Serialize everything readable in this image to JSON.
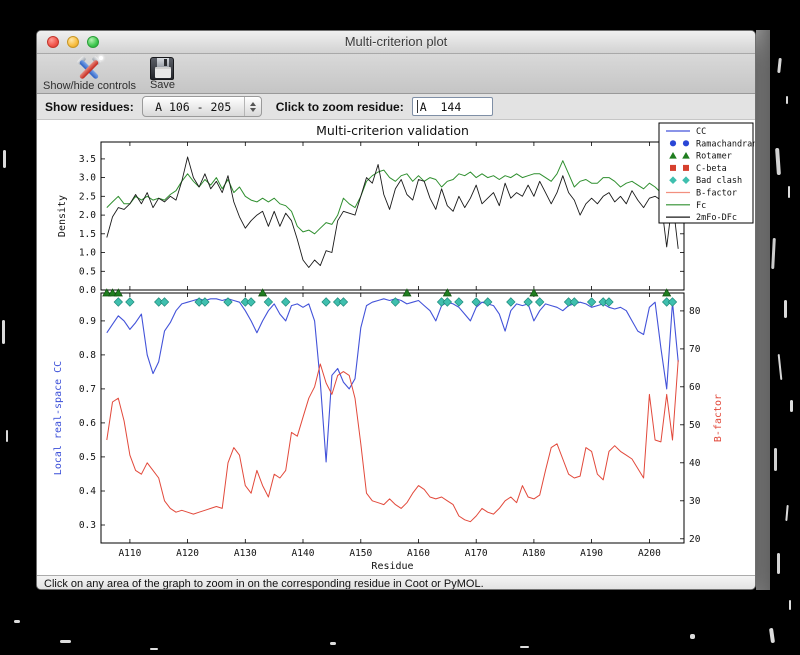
{
  "window": {
    "title": "Multi-criterion plot"
  },
  "toolbar": {
    "controls_label": "Show/hide controls",
    "save_label": "Save"
  },
  "controls": {
    "show_residues_label": "Show residues:",
    "range_value": "A 106 - 205",
    "zoom_label": "Click to zoom residue:",
    "zoom_value": "A  144"
  },
  "status": {
    "message": "Click on any area of the graph to zoom in on the corresponding residue in Coot or PyMOL."
  },
  "chart_data": {
    "type": "line",
    "title": "Multi-criterion validation",
    "xlabel": "Residue",
    "x_start": 106,
    "xlim": [
      105,
      206
    ],
    "x_ticks": [
      {
        "v": 110,
        "label": "A110"
      },
      {
        "v": 120,
        "label": "A120"
      },
      {
        "v": 130,
        "label": "A130"
      },
      {
        "v": 140,
        "label": "A140"
      },
      {
        "v": 150,
        "label": "A150"
      },
      {
        "v": 160,
        "label": "A160"
      },
      {
        "v": 170,
        "label": "A170"
      },
      {
        "v": 180,
        "label": "A180"
      },
      {
        "v": 190,
        "label": "A190"
      },
      {
        "v": 200,
        "label": "A200"
      }
    ],
    "top": {
      "ylabel": "Density",
      "ylabel_color": "#111111",
      "ylim": [
        0,
        3.95
      ],
      "yticks": [
        {
          "v": 0.0,
          "label": "0.0"
        },
        {
          "v": 0.5,
          "label": "0.5"
        },
        {
          "v": 1.0,
          "label": "1.0"
        },
        {
          "v": 1.5,
          "label": "1.5"
        },
        {
          "v": 2.0,
          "label": "2.0"
        },
        {
          "v": 2.5,
          "label": "2.5"
        },
        {
          "v": 3.0,
          "label": "3.0"
        },
        {
          "v": 3.5,
          "label": "3.5"
        }
      ],
      "series": [
        {
          "name": "Fc",
          "color": "#2f8f2f",
          "width": 1,
          "values": [
            2.2,
            2.35,
            2.5,
            2.3,
            2.3,
            2.5,
            2.4,
            2.5,
            2.4,
            2.45,
            2.4,
            2.55,
            2.65,
            2.9,
            3.1,
            2.9,
            2.75,
            2.95,
            2.8,
            3.0,
            2.7,
            2.95,
            2.6,
            2.75,
            2.5,
            2.4,
            2.35,
            2.45,
            2.35,
            2.45,
            2.3,
            2.25,
            2.1,
            1.7,
            1.55,
            1.6,
            1.5,
            1.65,
            1.8,
            1.75,
            2.0,
            2.45,
            2.3,
            2.2,
            2.5,
            2.9,
            3.05,
            3.15,
            3.2,
            3.0,
            2.9,
            3.05,
            3.1,
            2.9,
            3.05,
            2.9,
            3.0,
            2.95,
            2.75,
            2.9,
            2.95,
            3.1,
            3.05,
            3.15,
            3.0,
            3.1,
            3.0,
            3.05,
            2.95,
            3.05,
            3.0,
            3.1,
            3.0,
            3.05,
            3.1,
            3.1,
            3.0,
            2.9,
            3.1,
            3.45,
            3.1,
            2.75,
            2.9,
            2.95,
            2.85,
            2.85,
            3.0,
            3.0,
            2.9,
            2.75,
            2.85,
            2.9,
            2.8,
            2.7,
            2.85,
            2.75,
            2.6,
            2.15,
            2.6,
            2.55
          ]
        },
        {
          "name": "2mFo-DFc",
          "color": "#1a1a1a",
          "width": 0.9,
          "values": [
            1.4,
            1.95,
            2.2,
            2.15,
            2.3,
            2.55,
            2.3,
            2.6,
            2.2,
            2.45,
            2.35,
            2.5,
            2.4,
            2.9,
            3.55,
            3.0,
            2.75,
            3.1,
            2.7,
            2.9,
            2.6,
            3.05,
            2.35,
            1.95,
            1.65,
            1.85,
            2.0,
            2.1,
            1.7,
            2.1,
            1.7,
            2.05,
            1.85,
            1.35,
            0.8,
            0.6,
            0.8,
            0.65,
            1.05,
            1.0,
            1.85,
            2.1,
            2.05,
            2.0,
            2.5,
            3.0,
            2.85,
            3.35,
            2.55,
            2.15,
            2.7,
            2.95,
            2.55,
            2.4,
            2.95,
            2.9,
            2.45,
            2.15,
            2.7,
            2.25,
            2.1,
            2.5,
            2.2,
            2.45,
            2.8,
            2.3,
            2.45,
            2.6,
            2.25,
            2.85,
            2.45,
            2.6,
            2.5,
            2.8,
            2.5,
            2.9,
            2.6,
            2.3,
            2.6,
            3.05,
            2.6,
            2.4,
            2.0,
            2.3,
            2.45,
            2.3,
            2.5,
            2.6,
            2.35,
            2.5,
            2.3,
            2.65,
            2.4,
            2.2,
            2.45,
            2.5,
            2.4,
            1.15,
            2.4,
            1.1
          ]
        }
      ]
    },
    "bottom": {
      "ylabel_left": "Local real-space CC",
      "left_label_color": "#3b4fd8",
      "ylim_left": [
        0.247,
        0.982
      ],
      "yticks_left": [
        {
          "v": 0.3,
          "label": "0.3"
        },
        {
          "v": 0.4,
          "label": "0.4"
        },
        {
          "v": 0.5,
          "label": "0.5"
        },
        {
          "v": 0.6,
          "label": "0.6"
        },
        {
          "v": 0.7,
          "label": "0.7"
        },
        {
          "v": 0.8,
          "label": "0.8"
        },
        {
          "v": 0.9,
          "label": "0.9"
        }
      ],
      "ylabel_right": "B-factor",
      "right_label_color": "#e2493b",
      "ylim_right": [
        18.9,
        84.7
      ],
      "yticks_right": [
        {
          "v": 20,
          "label": "20"
        },
        {
          "v": 30,
          "label": "30"
        },
        {
          "v": 40,
          "label": "40"
        },
        {
          "v": 50,
          "label": "50"
        },
        {
          "v": 60,
          "label": "60"
        },
        {
          "v": 70,
          "label": "70"
        },
        {
          "v": 80,
          "label": "80"
        }
      ],
      "cc": {
        "name": "CC",
        "color": "#4353d9",
        "width": 1.1,
        "values": [
          0.865,
          0.89,
          0.915,
          0.9,
          0.875,
          0.895,
          0.92,
          0.8,
          0.745,
          0.78,
          0.87,
          0.895,
          0.93,
          0.95,
          0.955,
          0.96,
          0.965,
          0.96,
          0.965,
          0.965,
          0.96,
          0.965,
          0.96,
          0.955,
          0.93,
          0.9,
          0.865,
          0.9,
          0.93,
          0.95,
          0.92,
          0.9,
          0.945,
          0.95,
          0.94,
          0.95,
          0.9,
          0.72,
          0.485,
          0.74,
          0.76,
          0.72,
          0.7,
          0.73,
          0.88,
          0.945,
          0.955,
          0.96,
          0.965,
          0.96,
          0.965,
          0.96,
          0.95,
          0.955,
          0.96,
          0.945,
          0.93,
          0.9,
          0.945,
          0.955,
          0.95,
          0.94,
          0.92,
          0.9,
          0.94,
          0.955,
          0.95,
          0.945,
          0.92,
          0.87,
          0.93,
          0.95,
          0.945,
          0.95,
          0.9,
          0.93,
          0.95,
          0.945,
          0.94,
          0.93,
          0.945,
          0.95,
          0.955,
          0.95,
          0.94,
          0.945,
          0.95,
          0.94,
          0.935,
          0.94,
          0.93,
          0.9,
          0.87,
          0.86,
          0.94,
          0.955,
          0.82,
          0.7,
          0.955,
          0.78
        ]
      },
      "b_factor": {
        "name": "B-factor",
        "color": "#e2493b",
        "width": 1,
        "values": [
          46,
          56,
          57,
          51,
          42,
          38,
          37,
          40,
          38,
          36,
          30,
          28,
          27,
          27.5,
          27,
          26.5,
          27,
          27.5,
          28,
          28.5,
          28,
          40,
          44,
          42,
          34,
          32,
          38,
          34,
          31,
          37,
          36,
          38,
          48,
          47,
          52,
          57,
          60,
          66,
          61,
          58,
          63,
          64,
          63,
          57,
          45,
          32,
          30,
          29.5,
          29,
          30.5,
          29,
          28,
          29.5,
          32,
          34,
          33,
          31,
          30.5,
          31,
          30,
          29,
          26,
          25,
          24.5,
          26,
          28,
          27,
          26.5,
          28,
          30,
          31,
          29.5,
          34,
          31,
          30.5,
          31.5,
          38,
          44,
          45,
          41,
          37,
          36,
          36.5,
          44,
          43,
          37,
          35.5,
          43,
          44.5,
          43,
          42,
          41,
          38.5,
          36,
          58,
          46,
          45.5,
          58,
          46,
          67
        ]
      }
    },
    "markers": {
      "ramachandran": {
        "color": "#2946d6",
        "edge": "#16298f",
        "residues": []
      },
      "rotamer": {
        "color": "#1f7d1f",
        "edge": "#10510f",
        "residues": [
          106,
          107,
          108,
          133,
          158,
          165,
          180,
          203
        ]
      },
      "c_beta": {
        "color": "#d6402e",
        "edge": "#8f2417",
        "residues": []
      },
      "bad_clash": {
        "color": "#3fbfae",
        "edge": "#1f8a7a",
        "residues": [
          108,
          110,
          115,
          116,
          122,
          123,
          127,
          130,
          131,
          134,
          137,
          144,
          146,
          147,
          156,
          164,
          165,
          167,
          170,
          172,
          176,
          179,
          181,
          186,
          187,
          190,
          192,
          193,
          203,
          204
        ]
      }
    },
    "legend": {
      "entries": [
        {
          "label": "CC",
          "type": "line",
          "color": "#4353d9"
        },
        {
          "label": "Ramachandran",
          "type": "circle",
          "color": "#2946d6"
        },
        {
          "label": "Rotamer",
          "type": "triangle",
          "color": "#1f7d1f"
        },
        {
          "label": "C-beta",
          "type": "square",
          "color": "#d6402e"
        },
        {
          "label": "Bad clash",
          "type": "diamond",
          "color": "#3fbfae"
        },
        {
          "label": "B-factor",
          "type": "line",
          "color": "#f2907f"
        },
        {
          "label": "Fc",
          "type": "line",
          "color": "#2f8f2f"
        },
        {
          "label": "2mFo-DFc",
          "type": "line",
          "color": "#1a1a1a"
        }
      ]
    }
  }
}
